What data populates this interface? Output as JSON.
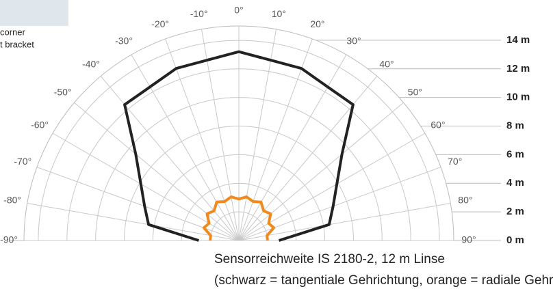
{
  "side_texts": [
    "corner",
    "t bracket"
  ],
  "chart_data": {
    "type": "polar",
    "caption": [
      "Sensorreichweite IS 2180-2, 12 m Linse",
      "(schwarz = tangentiale Gehrichtung, orange = radiale Gehrichtung)"
    ],
    "x": [
      -90,
      -80,
      -70,
      -60,
      -50,
      -40,
      -30,
      -20,
      -10,
      0,
      10,
      20,
      30,
      40,
      50,
      60,
      70,
      80,
      90
    ],
    "thetaticks": [
      {
        "value": -90,
        "label": "-90°"
      },
      {
        "value": -80,
        "label": "-80°"
      },
      {
        "value": -70,
        "label": "-70°"
      },
      {
        "value": -60,
        "label": "-60°"
      },
      {
        "value": -50,
        "label": "-50°"
      },
      {
        "value": -40,
        "label": "-40°"
      },
      {
        "value": -30,
        "label": "-30°"
      },
      {
        "value": -20,
        "label": "-20°"
      },
      {
        "value": -10,
        "label": "-10°"
      },
      {
        "value": 0,
        "label": "0°"
      },
      {
        "value": 10,
        "label": "10°"
      },
      {
        "value": 20,
        "label": "20°"
      },
      {
        "value": 30,
        "label": "30°"
      },
      {
        "value": 40,
        "label": "40°"
      },
      {
        "value": 50,
        "label": "50°"
      },
      {
        "value": 60,
        "label": "60°"
      },
      {
        "value": 70,
        "label": "70°"
      },
      {
        "value": 80,
        "label": "80°"
      },
      {
        "value": 90,
        "label": "90°"
      }
    ],
    "ylim": [
      0,
      15
    ],
    "yticks": [
      {
        "value": 0,
        "label": "0 m"
      },
      {
        "value": 2,
        "label": "2 m"
      },
      {
        "value": 4,
        "label": "4 m"
      },
      {
        "value": 6,
        "label": "6 m"
      },
      {
        "value": 8,
        "label": "8 m"
      },
      {
        "value": 10,
        "label": "10 m"
      },
      {
        "value": 12,
        "label": "12 m"
      },
      {
        "value": 14,
        "label": "14 m"
      }
    ],
    "series": [
      {
        "color": "#222222",
        "values": [
          2.8,
          6.4,
          7.0,
          7.9,
          9.4,
          12.4,
          12.4,
          12.8,
          12.8,
          13.2,
          12.8,
          12.8,
          12.4,
          12.4,
          9.4,
          7.9,
          7.0,
          6.4,
          2.8
        ]
      },
      {
        "color": "#f08a1c",
        "values": [
          2.0,
          2.0,
          2.6,
          2.4,
          2.9,
          2.7,
          3.1,
          2.9,
          3.1,
          2.9,
          3.1,
          2.9,
          3.1,
          2.7,
          2.9,
          2.4,
          2.6,
          2.0,
          2.0
        ]
      }
    ]
  }
}
